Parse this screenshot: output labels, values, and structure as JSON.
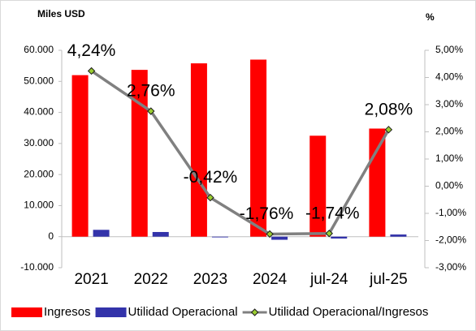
{
  "chart_data": {
    "type": "bar-line",
    "y_axis_label": "Miles USD",
    "y2_axis_label": "%",
    "categories": [
      "2021",
      "2022",
      "2023",
      "2024",
      "jul-24",
      "jul-25"
    ],
    "series": [
      {
        "name": "Ingresos",
        "color": "#ff0000",
        "type": "bar",
        "values": [
          52000,
          53700,
          55800,
          57000,
          32500,
          34800
        ]
      },
      {
        "name": "Utilidad Operacional",
        "color": "#3333aa",
        "type": "bar",
        "values": [
          2200,
          1500,
          -230,
          -1000,
          -600,
          700
        ]
      },
      {
        "name": "Utilidad Operacional/Ingresos",
        "color": "#808080",
        "type": "line",
        "axis": "y2",
        "values": [
          4.24,
          2.76,
          -0.42,
          -1.76,
          -1.74,
          2.08
        ],
        "value_labels": [
          "4,24%",
          "2,76%",
          "-0,42%",
          "-1,76%",
          "-1,74%",
          "2,08%"
        ]
      }
    ],
    "ylim": [
      -10000,
      60000
    ],
    "yticks": [
      {
        "value": -10000,
        "label": "-10.000"
      },
      0,
      {
        "value": 10000,
        "label": "10.000"
      },
      {
        "value": 20000,
        "label": "20.000"
      },
      {
        "value": 30000,
        "label": "30.000"
      },
      {
        "value": 40000,
        "label": "40.000"
      },
      {
        "value": 50000,
        "label": "50.000"
      },
      {
        "value": 60000,
        "label": "60.000"
      }
    ],
    "y2lim": [
      -3,
      5
    ],
    "y2ticks": [
      {
        "value": -3,
        "label": "-3,00%"
      },
      {
        "value": -2,
        "label": "-2,00%"
      },
      {
        "value": -1,
        "label": "-1,00%"
      },
      {
        "value": 0,
        "label": "0,00%"
      },
      {
        "value": 1,
        "label": "1,00%"
      },
      {
        "value": 2,
        "label": "2,00%"
      },
      {
        "value": 3,
        "label": "3,00%"
      },
      {
        "value": 4,
        "label": "4,00%"
      },
      {
        "value": 5,
        "label": "5,00%"
      }
    ],
    "legend": "bottom"
  }
}
